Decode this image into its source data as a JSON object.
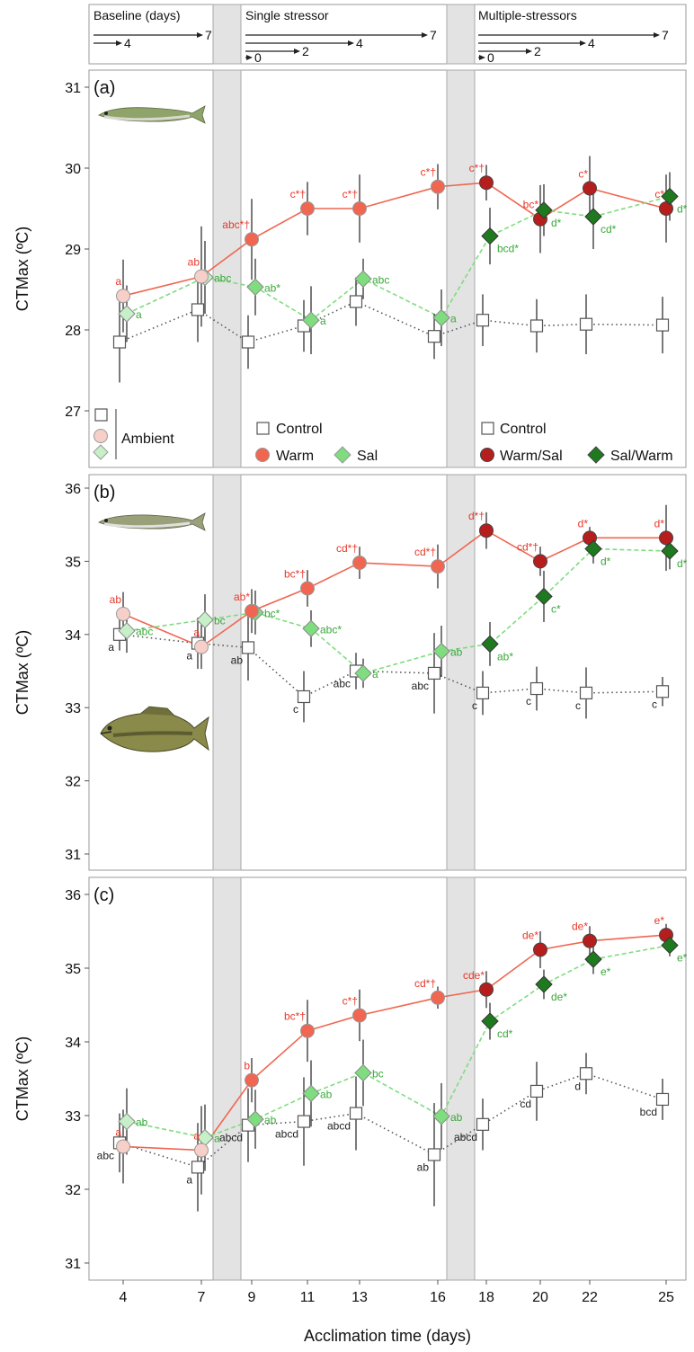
{
  "colors": {
    "warm": "#f06650",
    "sal": "#7fdc7f",
    "warmsal": "#b61e1e",
    "salwarm": "#1f7a1f",
    "ambient_circle": "#f6cfc8",
    "ambient_diamond": "#c8f0c8",
    "control_line": "#555555",
    "warm_text": "#e8372a",
    "sal_text": "#3aa83a",
    "shade": "#e3e3e3"
  },
  "timeline": {
    "sections": [
      "Baseline (days)",
      "Single stressor",
      "Multiple-stressors"
    ],
    "baseline_marks": [
      "4",
      "7"
    ],
    "single_marks": [
      "0",
      "2",
      "4",
      "7"
    ],
    "multi_marks": [
      "0",
      "2",
      "4",
      "7"
    ]
  },
  "legend": {
    "ambient_label": "Ambient",
    "control_label": "Control",
    "warm_label": "Warm",
    "sal_label": "Sal",
    "control2_label": "Control",
    "warmsal_label": "Warm/Sal",
    "salwarm_label": "Sal/Warm"
  },
  "axes": {
    "xlabel": "Acclimation time (days)",
    "ylabel": "CTMax (ºC)",
    "x_ticks": [
      "4",
      "7",
      "9",
      "11",
      "13",
      "16",
      "18",
      "20",
      "22",
      "25"
    ]
  },
  "chart_data": [
    {
      "type": "line",
      "panel": "(a)",
      "ylim": [
        26.5,
        31.2
      ],
      "y_ticks": [
        27,
        28,
        29,
        30,
        31
      ],
      "x": [
        "4",
        "7",
        "9",
        "11",
        "13",
        "16",
        "18",
        "20",
        "22",
        "25"
      ],
      "series": [
        {
          "name": "Control",
          "key": "control",
          "values": [
            27.85,
            28.25,
            27.85,
            28.05,
            28.35,
            27.92,
            28.12,
            28.05,
            28.07,
            28.06
          ],
          "err": [
            0.5,
            0.4,
            0.33,
            0.32,
            0.3,
            0.28,
            0.32,
            0.33,
            0.37,
            0.35
          ],
          "labels": [
            "",
            "",
            "",
            "",
            "",
            "",
            "",
            "",
            "",
            ""
          ]
        },
        {
          "name": "Warm",
          "key": "warm",
          "values": [
            28.42,
            28.66,
            29.12,
            29.5,
            29.5,
            29.77,
            29.82,
            29.37,
            29.75,
            29.5
          ],
          "err": [
            0.45,
            0.62,
            0.5,
            0.33,
            0.42,
            0.28,
            0.22,
            0.42,
            0.4,
            0.42
          ],
          "labels": [
            "a",
            "ab",
            "abc*†",
            "c*†",
            "c*†",
            "c*†",
            "c*†",
            "bc*",
            "c*",
            "c*"
          ]
        },
        {
          "name": "Sal",
          "key": "sal",
          "values": [
            28.2,
            28.65,
            28.53,
            28.12,
            28.63,
            28.15,
            null,
            null,
            null,
            null
          ],
          "err": [
            0.35,
            0.45,
            0.35,
            0.42,
            0.25,
            0.35,
            null,
            null,
            null,
            null
          ],
          "labels": [
            "a",
            "abc",
            "ab*",
            "a",
            "abc",
            "a",
            "",
            "",
            "",
            ""
          ]
        },
        {
          "name": "Sal/Warm",
          "key": "salwarm",
          "values": [
            null,
            null,
            null,
            null,
            null,
            null,
            29.16,
            29.48,
            29.4,
            29.65
          ],
          "err": [
            null,
            null,
            null,
            null,
            null,
            null,
            0.35,
            0.32,
            0.4,
            0.3
          ],
          "labels": [
            "",
            "",
            "",
            "",
            "",
            "",
            "bcd*",
            "d*",
            "cd*",
            "d*"
          ]
        }
      ]
    },
    {
      "type": "line",
      "panel": "(b)",
      "ylim": [
        30.8,
        36.3
      ],
      "y_ticks": [
        31,
        32,
        33,
        34,
        35,
        36
      ],
      "x": [
        "4",
        "7",
        "9",
        "11",
        "13",
        "16",
        "18",
        "20",
        "22",
        "25"
      ],
      "series": [
        {
          "name": "Control",
          "key": "control",
          "values": [
            34.0,
            33.88,
            33.82,
            33.15,
            33.5,
            33.47,
            33.2,
            33.26,
            33.2,
            33.22
          ],
          "err": [
            0.22,
            0.35,
            0.45,
            0.35,
            0.25,
            0.55,
            0.3,
            0.3,
            0.35,
            0.2
          ],
          "labels": [
            "a",
            "a",
            "ab",
            "c",
            "abc",
            "abc",
            "c",
            "c",
            "c",
            "c"
          ]
        },
        {
          "name": "Warm",
          "key": "warm",
          "values": [
            34.28,
            33.83,
            34.32,
            34.63,
            34.98,
            34.93,
            35.42,
            35.0,
            35.32,
            35.32
          ],
          "err": [
            0.3,
            0.3,
            0.3,
            0.25,
            0.22,
            0.3,
            0.25,
            0.2,
            0.15,
            0.45
          ],
          "labels": [
            "ab",
            "a",
            "ab*",
            "bc*†",
            "cd*†",
            "cd*†",
            "d*†",
            "cd*†",
            "d*",
            "d*"
          ]
        },
        {
          "name": "Sal",
          "key": "sal",
          "values": [
            34.05,
            34.2,
            34.3,
            34.08,
            33.47,
            33.77,
            null,
            null,
            null,
            null
          ],
          "err": [
            0.3,
            0.35,
            0.3,
            0.25,
            0.2,
            0.35,
            null,
            null,
            null,
            null
          ],
          "labels": [
            "abc",
            "bc",
            "bc*",
            "abc*",
            "a",
            "ab",
            "",
            "",
            "",
            ""
          ]
        },
        {
          "name": "Sal/Warm",
          "key": "salwarm",
          "values": [
            null,
            null,
            null,
            null,
            null,
            null,
            33.87,
            34.52,
            35.17,
            35.14
          ],
          "err": [
            null,
            null,
            null,
            null,
            null,
            null,
            0.3,
            0.35,
            0.2,
            0.25
          ],
          "labels": [
            "",
            "",
            "",
            "",
            "",
            "",
            "ab*",
            "c*",
            "d*",
            "d*"
          ]
        }
      ]
    },
    {
      "type": "line",
      "panel": "(c)",
      "ylim": [
        30.8,
        36.3
      ],
      "y_ticks": [
        31,
        32,
        33,
        34,
        35,
        36
      ],
      "x": [
        "4",
        "7",
        "9",
        "11",
        "13",
        "16",
        "18",
        "20",
        "22",
        "25"
      ],
      "series": [
        {
          "name": "Control",
          "key": "control",
          "values": [
            32.63,
            32.3,
            32.87,
            32.92,
            33.03,
            32.47,
            32.88,
            33.33,
            33.57,
            33.22
          ],
          "err": [
            0.4,
            0.6,
            0.5,
            0.6,
            0.5,
            0.7,
            0.35,
            0.4,
            0.28,
            0.28
          ],
          "labels": [
            "abc",
            "a",
            "abcd",
            "abcd",
            "abcd",
            "ab",
            "abcd",
            "cd",
            "d",
            "bcd"
          ]
        },
        {
          "name": "Warm",
          "key": "warm",
          "values": [
            32.58,
            32.53,
            33.48,
            34.15,
            34.36,
            34.6,
            34.71,
            35.25,
            35.37,
            35.45
          ],
          "err": [
            0.5,
            0.6,
            0.3,
            0.42,
            0.35,
            0.15,
            0.25,
            0.25,
            0.2,
            0.15
          ],
          "labels": [
            "a",
            "a",
            "b",
            "bc*†",
            "c*†",
            "cd*†",
            "cde*",
            "de*",
            "de*",
            "e*"
          ]
        },
        {
          "name": "Sal",
          "key": "sal",
          "values": [
            32.92,
            32.7,
            32.95,
            33.3,
            33.58,
            32.99,
            null,
            null,
            null,
            null
          ],
          "err": [
            0.45,
            0.45,
            0.4,
            0.45,
            0.45,
            0.45,
            null,
            null,
            null,
            null
          ],
          "labels": [
            "ab",
            "a",
            "ab",
            "ab",
            "bc",
            "ab",
            "",
            "",
            "",
            ""
          ]
        },
        {
          "name": "Sal/Warm",
          "key": "salwarm",
          "values": [
            null,
            null,
            null,
            null,
            null,
            null,
            34.28,
            34.78,
            35.12,
            35.31
          ],
          "err": [
            null,
            null,
            null,
            null,
            null,
            null,
            0.25,
            0.2,
            0.2,
            0.15
          ],
          "labels": [
            "",
            "",
            "",
            "",
            "",
            "",
            "cd*",
            "de*",
            "e*",
            "e*"
          ]
        }
      ]
    }
  ]
}
